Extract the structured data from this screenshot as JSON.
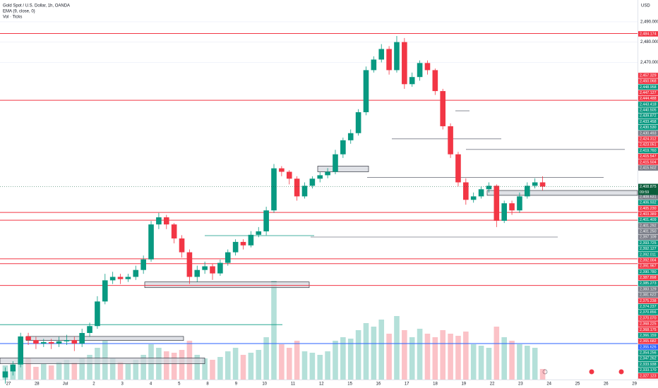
{
  "chart_data": {
    "type": "candlestick",
    "title": "Gold Spot / U.S. Dollar, 1h, OANDA",
    "indicator": "EMA (9, close, 0)",
    "volume_label": "Vol · Ticks",
    "currency": "USD",
    "up_color": "#089981",
    "down_color": "#f23645",
    "ylim": [
      2314,
      2500.7
    ],
    "yticks": [
      {
        "value": 2490,
        "label": "2,490.000"
      },
      {
        "value": 2480,
        "label": "2,480.000"
      },
      {
        "value": 2470,
        "label": "2,470.000"
      }
    ],
    "date_labels": [
      "27",
      "28",
      "Jul",
      "2",
      "3",
      "4",
      "5",
      "8",
      "9",
      "10",
      "11",
      "12",
      "15",
      "16",
      "17",
      "18",
      "19",
      "22",
      "23",
      "24",
      "25",
      "26",
      "29"
    ],
    "candles": [
      [
        2315,
        2320,
        2312,
        2318
      ],
      [
        2318,
        2323,
        2316,
        2321.4
      ],
      [
        2321.4,
        2337,
        2320,
        2335.2
      ],
      [
        2335.2,
        2337,
        2331,
        2333.4
      ],
      [
        2333.4,
        2335,
        2329,
        2331.7
      ],
      [
        2331.7,
        2334,
        2330,
        2332.4
      ],
      [
        2332.4,
        2334,
        2329,
        2331.7
      ],
      [
        2331.7,
        2335,
        2330,
        2332.8
      ],
      [
        2332.8,
        2336,
        2331,
        2333.4
      ],
      [
        2333.4,
        2335,
        2328,
        2331.7
      ],
      [
        2331.7,
        2339,
        2330,
        2336.9
      ],
      [
        2336.9,
        2342,
        2335,
        2340.3
      ],
      [
        2340.3,
        2355,
        2339,
        2352.4
      ],
      [
        2352.4,
        2366,
        2351,
        2362.8
      ],
      [
        2362.8,
        2367,
        2361,
        2364.5
      ],
      [
        2364.5,
        2366,
        2361,
        2363.4
      ],
      [
        2363.4,
        2366,
        2362,
        2364.5
      ],
      [
        2364.5,
        2370,
        2363,
        2367.9
      ],
      [
        2367.9,
        2375,
        2366,
        2373.1
      ],
      [
        2373.1,
        2392,
        2372,
        2390.3
      ],
      [
        2390.3,
        2396,
        2388,
        2393.8
      ],
      [
        2393.8,
        2395,
        2388,
        2390.3
      ],
      [
        2390.3,
        2391,
        2381,
        2383.4
      ],
      [
        2383.4,
        2385,
        2374,
        2376.6
      ],
      [
        2376.6,
        2378,
        2361,
        2364.5
      ],
      [
        2364.5,
        2370,
        2362,
        2367.9
      ],
      [
        2367.9,
        2372,
        2366,
        2369.7
      ],
      [
        2369.7,
        2371,
        2363,
        2366.2
      ],
      [
        2366.2,
        2373,
        2365,
        2371.4
      ],
      [
        2371.4,
        2378,
        2370,
        2376.6
      ],
      [
        2376.6,
        2383,
        2375,
        2381.7
      ],
      [
        2381.7,
        2383,
        2378,
        2380
      ],
      [
        2380,
        2387,
        2379,
        2385.2
      ],
      [
        2385.2,
        2389,
        2384,
        2386.9
      ],
      [
        2386.9,
        2399,
        2385,
        2397.2
      ],
      [
        2397.2,
        2420,
        2396,
        2417.9
      ],
      [
        2417.9,
        2419,
        2414,
        2416.2
      ],
      [
        2416.2,
        2417,
        2410,
        2412.8
      ],
      [
        2412.8,
        2414,
        2402,
        2404.1
      ],
      [
        2404.1,
        2411,
        2403,
        2409.3
      ],
      [
        2409.3,
        2414,
        2408,
        2412.8
      ],
      [
        2412.8,
        2416,
        2411,
        2414.5
      ],
      [
        2414.5,
        2418,
        2413,
        2416.2
      ],
      [
        2416.2,
        2427,
        2415,
        2424.8
      ],
      [
        2424.8,
        2433,
        2423,
        2431.7
      ],
      [
        2431.7,
        2437,
        2430,
        2435.2
      ],
      [
        2435.2,
        2447,
        2434,
        2445.5
      ],
      [
        2445.5,
        2468,
        2444,
        2466.2
      ],
      [
        2466.2,
        2473,
        2465,
        2471.4
      ],
      [
        2471.4,
        2479,
        2470,
        2476.6
      ],
      [
        2476.6,
        2478,
        2464,
        2466.2
      ],
      [
        2466.2,
        2483,
        2465,
        2480
      ],
      [
        2480,
        2482,
        2457,
        2459.3
      ],
      [
        2459.3,
        2465,
        2458,
        2462.8
      ],
      [
        2462.8,
        2471,
        2461,
        2469.7
      ],
      [
        2469.7,
        2471,
        2464,
        2466.2
      ],
      [
        2466.2,
        2467,
        2454,
        2455.9
      ],
      [
        2455.9,
        2457,
        2437,
        2438.6
      ],
      [
        2438.6,
        2440,
        2423,
        2424.8
      ],
      [
        2424.8,
        2426,
        2409,
        2411
      ],
      [
        2411,
        2413,
        2400,
        2402.4
      ],
      [
        2402.4,
        2406,
        2401,
        2404.1
      ],
      [
        2404.1,
        2409,
        2403,
        2407.6
      ],
      [
        2407.6,
        2411,
        2406,
        2409.3
      ],
      [
        2409.3,
        2410,
        2389,
        2392.1
      ],
      [
        2392.1,
        2402,
        2391,
        2400.7
      ],
      [
        2400.7,
        2402,
        2395,
        2397.2
      ],
      [
        2397.2,
        2406,
        2396,
        2404.1
      ],
      [
        2404.1,
        2411,
        2403,
        2409.3
      ],
      [
        2409.3,
        2413,
        2408,
        2411
      ],
      [
        2411,
        2414,
        2407,
        2408.9
      ]
    ],
    "volume": [
      20,
      15,
      25,
      30,
      18,
      22,
      20,
      25,
      28,
      24,
      30,
      35,
      45,
      55,
      30,
      25,
      22,
      28,
      35,
      50,
      45,
      40,
      38,
      42,
      55,
      35,
      30,
      28,
      32,
      40,
      45,
      35,
      38,
      42,
      60,
      140,
      50,
      45,
      55,
      40,
      38,
      35,
      40,
      55,
      60,
      58,
      70,
      80,
      75,
      85,
      65,
      90,
      70,
      60,
      72,
      65,
      60,
      70,
      65,
      62,
      68,
      50,
      48,
      45,
      75,
      60,
      55,
      50,
      48,
      45,
      15
    ],
    "vlim": [
      0,
      160
    ],
    "levels": [
      {
        "price": 2484.2,
        "color": "#f23645"
      },
      {
        "price": 2451.4,
        "color": "#f23645"
      },
      {
        "price": 2396.2,
        "color": "#f23645"
      },
      {
        "price": 2392.4,
        "color": "#f23645"
      },
      {
        "price": 2373.4,
        "color": "#f23645"
      },
      {
        "price": 2371,
        "color": "#f23645"
      },
      {
        "price": 2360.3,
        "color": "#f23645"
      },
      {
        "price": 2331.7,
        "color": "#2962ff"
      }
    ],
    "segments": [
      {
        "price": 2446.2,
        "color": "#787b86"
      },
      {
        "price": 2432.4,
        "color": "#787b86"
      },
      {
        "price": 2427.2,
        "color": "#787b86"
      },
      {
        "price": 2413.4,
        "color": "#787b86"
      },
      {
        "price": 2384.1,
        "color": "#787b86"
      },
      {
        "price": 2341,
        "color": "#089981"
      },
      {
        "price": 2384.8,
        "color": "#089981"
      }
    ],
    "boxes": [
      [
        2419,
        2416.2
      ],
      [
        2407,
        2404.6
      ],
      [
        2362,
        2359.2
      ],
      [
        2335.2,
        2333.2
      ],
      [
        2324.6,
        2321.8
      ]
    ],
    "price_labels": [
      {
        "label": "2,484.174",
        "color": "#f23645"
      },
      {
        "label": "2,457.329",
        "color": "#f23645"
      },
      {
        "label": "2,450.068",
        "color": "#f23645"
      },
      {
        "label": "2,448.958",
        "color": "#089981"
      },
      {
        "label": "2,447.127",
        "color": "#f23645"
      },
      {
        "label": "2,444.488",
        "color": "#f23645"
      },
      {
        "label": "2,443.418",
        "color": "#089981"
      },
      {
        "label": "2,440.505",
        "color": "#089981"
      },
      {
        "label": "2,439.872",
        "color": "#089981"
      },
      {
        "label": "2,433.458",
        "color": "#089981"
      },
      {
        "label": "2,430.530",
        "color": "#089981"
      },
      {
        "label": "2,430.493",
        "color": "#787b86"
      },
      {
        "label": "2,424.312",
        "color": "#f23645"
      },
      {
        "label": "2,423.051",
        "color": "#f23645"
      },
      {
        "label": "2,419.760",
        "color": "#089981"
      },
      {
        "label": "2,415.547",
        "color": "#f23645"
      },
      {
        "label": "2,415.504",
        "color": "#f23645"
      },
      {
        "label": "2,415.502",
        "color": "#787b86"
      },
      {
        "label": "2,408.718",
        "color": "#787b86"
      },
      {
        "label": "2,408.631",
        "color": "#787b86"
      },
      {
        "label": "2,406.932",
        "color": "#089981"
      },
      {
        "label": "2,405.230",
        "color": "#f23645"
      },
      {
        "label": "2,403.389",
        "color": "#f23645"
      },
      {
        "label": "2,401.409",
        "color": "#089981"
      },
      {
        "label": "2,401.292",
        "color": "#787b86"
      },
      {
        "label": "2,401.250",
        "color": "#787b86"
      },
      {
        "label": "2,397.109",
        "color": "#787b86"
      },
      {
        "label": "2,393.725",
        "color": "#089981"
      },
      {
        "label": "2,392.127",
        "color": "#089981"
      },
      {
        "label": "2,392.011",
        "color": "#089981"
      },
      {
        "label": "2,392.004",
        "color": "#f23645"
      },
      {
        "label": "2,391.967",
        "color": "#f23645"
      },
      {
        "label": "2,390.780",
        "color": "#089981"
      },
      {
        "label": "2,387.898",
        "color": "#f23645"
      },
      {
        "label": "2,385.273",
        "color": "#089981"
      },
      {
        "label": "2,383.129",
        "color": "#787b86"
      },
      {
        "label": "2,381.622",
        "color": "#787b86"
      },
      {
        "label": "2,375.238",
        "color": "#f23645"
      },
      {
        "label": "2,374.237",
        "color": "#089981"
      },
      {
        "label": "2,370.856",
        "color": "#089981"
      },
      {
        "label": "2,370.070",
        "color": "#f23645"
      },
      {
        "label": "2,368.225",
        "color": "#f23645"
      },
      {
        "label": "2,368.175",
        "color": "#f23645"
      },
      {
        "label": "2,366.159",
        "color": "#089981"
      },
      {
        "label": "2,365.682",
        "color": "#f23645"
      },
      {
        "label": "2,355.626",
        "color": "#2962ff"
      },
      {
        "label": "2,354.256",
        "color": "#089981"
      },
      {
        "label": "2,347.262",
        "color": "#089981"
      },
      {
        "label": "2,333.938",
        "color": "#089981"
      },
      {
        "label": "2,333.170",
        "color": "#089981"
      },
      {
        "label": "2,327.123",
        "color": "#f23645"
      }
    ],
    "last_price": {
      "label": "2,408.875",
      "countdown": "09:59",
      "color": "#0b5d3b"
    }
  }
}
